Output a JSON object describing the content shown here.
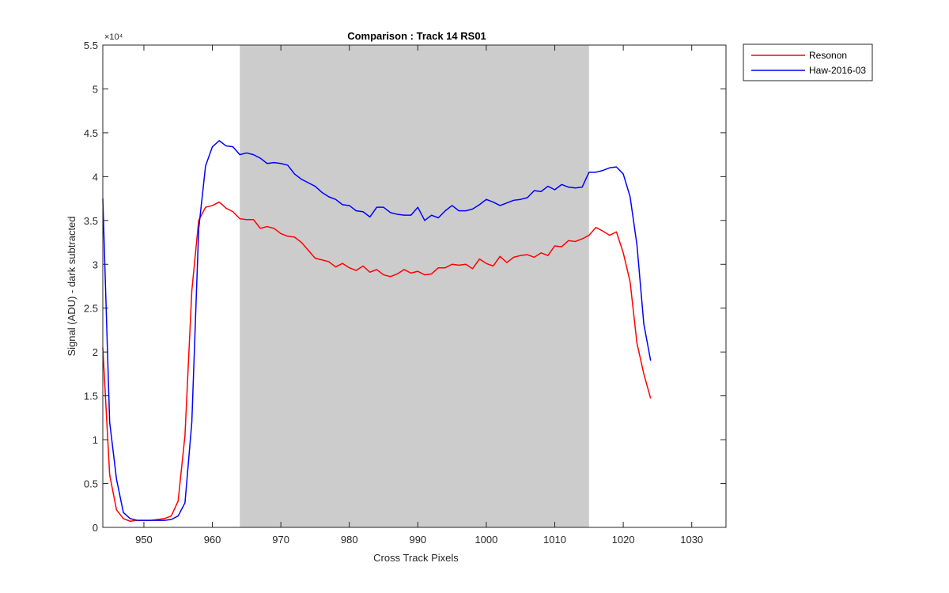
{
  "chart_data": {
    "type": "line",
    "title": "Comparison : Track 14  RS01",
    "xlabel": "Cross Track Pixels",
    "ylabel": "Signal (ADU) - dark subtracted",
    "y_exponent_label": "×10⁴",
    "xlim": [
      944,
      1035
    ],
    "ylim": [
      0,
      5.5
    ],
    "y_scale_note": "values in units of 10^4",
    "xticks": [
      950,
      960,
      970,
      980,
      990,
      1000,
      1010,
      1020,
      1030
    ],
    "yticks": [
      0,
      0.5,
      1,
      1.5,
      2,
      2.5,
      3,
      3.5,
      4,
      4.5,
      5,
      5.5
    ],
    "ytick_labels": [
      "0",
      "0.5",
      "1",
      "1.5",
      "2",
      "2.5",
      "3",
      "3.5",
      "4",
      "4.5",
      "5",
      "5.5"
    ],
    "shaded_region": {
      "x_start": 964,
      "x_end": 1015,
      "color": "#cccccc"
    },
    "grid": false,
    "legend_position": "outside-top-right",
    "series": [
      {
        "name": "Resonon",
        "color": "#ff0000",
        "x": [
          944,
          945,
          946,
          947,
          948,
          949,
          950,
          951,
          952,
          953,
          954,
          955,
          956,
          957,
          958,
          959,
          960,
          961,
          962,
          963,
          964,
          965,
          966,
          967,
          968,
          969,
          970,
          971,
          972,
          973,
          974,
          975,
          976,
          977,
          978,
          979,
          980,
          981,
          982,
          983,
          984,
          985,
          986,
          987,
          988,
          989,
          990,
          991,
          992,
          993,
          994,
          995,
          996,
          997,
          998,
          999,
          1000,
          1001,
          1002,
          1003,
          1004,
          1005,
          1006,
          1007,
          1008,
          1009,
          1010,
          1011,
          1012,
          1013,
          1014,
          1015,
          1016,
          1017,
          1018,
          1019,
          1020,
          1021,
          1022,
          1023,
          1024
        ],
        "y": [
          2.05,
          0.6,
          0.2,
          0.1,
          0.07,
          0.08,
          0.08,
          0.08,
          0.09,
          0.1,
          0.13,
          0.3,
          1.05,
          2.7,
          3.5,
          3.65,
          3.67,
          3.71,
          3.64,
          3.6,
          3.52,
          3.51,
          3.51,
          3.41,
          3.43,
          3.41,
          3.35,
          3.32,
          3.31,
          3.25,
          3.16,
          3.07,
          3.05,
          3.03,
          2.97,
          3.01,
          2.96,
          2.93,
          2.98,
          2.91,
          2.94,
          2.88,
          2.86,
          2.89,
          2.94,
          2.9,
          2.92,
          2.88,
          2.89,
          2.96,
          2.96,
          3.0,
          2.99,
          3.0,
          2.95,
          3.06,
          3.01,
          2.98,
          3.09,
          3.02,
          3.08,
          3.1,
          3.11,
          3.08,
          3.13,
          3.1,
          3.21,
          3.2,
          3.27,
          3.26,
          3.29,
          3.33,
          3.42,
          3.38,
          3.33,
          3.37,
          3.13,
          2.8,
          2.1,
          1.75,
          1.47
        ]
      },
      {
        "name": "Haw-2016-03",
        "color": "#0000ff",
        "x": [
          944,
          945,
          946,
          947,
          948,
          949,
          950,
          951,
          952,
          953,
          954,
          955,
          956,
          957,
          958,
          959,
          960,
          961,
          962,
          963,
          964,
          965,
          966,
          967,
          968,
          969,
          970,
          971,
          972,
          973,
          974,
          975,
          976,
          977,
          978,
          979,
          980,
          981,
          982,
          983,
          984,
          985,
          986,
          987,
          988,
          989,
          990,
          991,
          992,
          993,
          994,
          995,
          996,
          997,
          998,
          999,
          1000,
          1001,
          1002,
          1003,
          1004,
          1005,
          1006,
          1007,
          1008,
          1009,
          1010,
          1011,
          1012,
          1013,
          1014,
          1015,
          1016,
          1017,
          1018,
          1019,
          1020,
          1021,
          1022,
          1023,
          1024
        ],
        "y": [
          3.75,
          1.2,
          0.55,
          0.17,
          0.1,
          0.08,
          0.08,
          0.08,
          0.08,
          0.08,
          0.09,
          0.13,
          0.28,
          1.2,
          3.4,
          4.12,
          4.34,
          4.41,
          4.35,
          4.34,
          4.25,
          4.27,
          4.25,
          4.21,
          4.15,
          4.16,
          4.15,
          4.13,
          4.03,
          3.97,
          3.93,
          3.89,
          3.82,
          3.77,
          3.74,
          3.68,
          3.67,
          3.61,
          3.6,
          3.54,
          3.65,
          3.65,
          3.59,
          3.57,
          3.56,
          3.56,
          3.65,
          3.5,
          3.56,
          3.53,
          3.61,
          3.67,
          3.61,
          3.61,
          3.63,
          3.68,
          3.74,
          3.71,
          3.67,
          3.7,
          3.73,
          3.74,
          3.76,
          3.84,
          3.83,
          3.89,
          3.85,
          3.91,
          3.88,
          3.87,
          3.88,
          4.05,
          4.05,
          4.07,
          4.1,
          4.11,
          4.03,
          3.77,
          3.22,
          2.32,
          1.9
        ]
      }
    ]
  }
}
